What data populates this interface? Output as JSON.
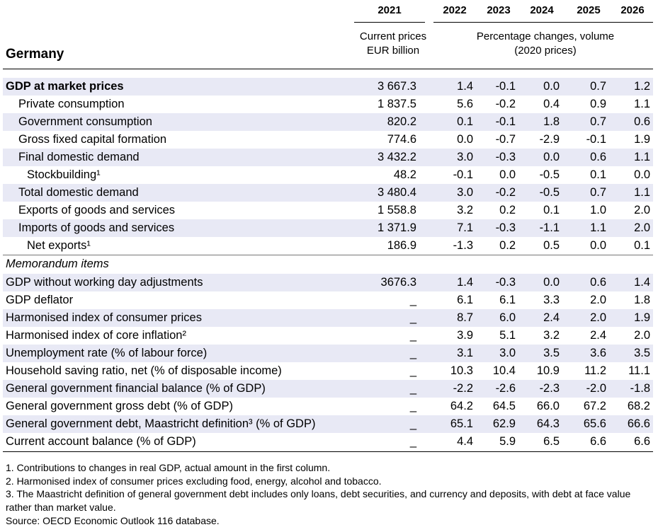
{
  "title": "Germany",
  "years": [
    "2021",
    "2022",
    "2023",
    "2024",
    "2025",
    "2026"
  ],
  "subheaders": {
    "col_2021_line1": "Current prices",
    "col_2021_line2": "EUR billion",
    "pct_line1": "Percentage changes, volume",
    "pct_line2": "(2020 prices)"
  },
  "rows": [
    {
      "label": "GDP at market prices",
      "values": [
        "3 667.3",
        "1.4",
        "-0.1",
        "0.0",
        "0.7",
        "1.2"
      ]
    },
    {
      "label": "Private consumption",
      "values": [
        "1 837.5",
        "5.6",
        "-0.2",
        "0.4",
        "0.9",
        "1.1"
      ]
    },
    {
      "label": "Government consumption",
      "values": [
        "820.2",
        "0.1",
        "-0.1",
        "1.8",
        "0.7",
        "0.6"
      ]
    },
    {
      "label": "Gross fixed capital formation",
      "values": [
        "774.6",
        "0.0",
        "-0.7",
        "-2.9",
        "-0.1",
        "1.9"
      ]
    },
    {
      "label": "Final domestic demand",
      "values": [
        "3 432.2",
        "3.0",
        "-0.3",
        "0.0",
        "0.6",
        "1.1"
      ]
    },
    {
      "label": "Stockbuilding¹",
      "values": [
        "48.2",
        "-0.1",
        "0.0",
        "-0.5",
        "0.1",
        "0.0"
      ]
    },
    {
      "label": "Total domestic demand",
      "values": [
        "3 480.4",
        "3.0",
        "-0.2",
        "-0.5",
        "0.7",
        "1.1"
      ]
    },
    {
      "label": "Exports of goods and services",
      "values": [
        "1 558.8",
        "3.2",
        "0.2",
        "0.1",
        "1.0",
        "2.0"
      ]
    },
    {
      "label": "Imports of goods and services",
      "values": [
        "1 371.9",
        "7.1",
        "-0.3",
        "-1.1",
        "1.1",
        "2.0"
      ]
    },
    {
      "label": "Net exports¹",
      "values": [
        "186.9",
        "-1.3",
        "0.2",
        "0.5",
        "0.0",
        "0.1"
      ]
    }
  ],
  "memo_label": "Memorandum items",
  "memo_rows": [
    {
      "label": "GDP without working day adjustments",
      "values": [
        "3676.3",
        "1.4",
        "-0.3",
        "0.0",
        "0.6",
        "1.4"
      ]
    },
    {
      "label": "GDP deflator",
      "values": [
        "_",
        "6.1",
        "6.1",
        "3.3",
        "2.0",
        "1.8"
      ]
    },
    {
      "label": "Harmonised index of consumer prices",
      "values": [
        "_",
        "8.7",
        "6.0",
        "2.4",
        "2.0",
        "1.9"
      ]
    },
    {
      "label": "Harmonised index of core inflation²",
      "values": [
        "_",
        "3.9",
        "5.1",
        "3.2",
        "2.4",
        "2.0"
      ]
    },
    {
      "label": "Unemployment rate (% of labour force)",
      "values": [
        "_",
        "3.1",
        "3.0",
        "3.5",
        "3.6",
        "3.5"
      ]
    },
    {
      "label": "Household saving ratio, net (% of disposable income)",
      "values": [
        "_",
        "10.3",
        "10.4",
        "10.9",
        "11.2",
        "11.1"
      ]
    },
    {
      "label": "General government financial balance (% of GDP)",
      "values": [
        "_",
        "-2.2",
        "-2.6",
        "-2.3",
        "-2.0",
        "-1.8"
      ]
    },
    {
      "label": "General government gross debt (% of GDP)",
      "values": [
        "_",
        "64.2",
        "64.5",
        "66.0",
        "67.2",
        "68.2"
      ]
    },
    {
      "label": "General government debt, Maastricht definition³ (% of GDP)",
      "values": [
        "_",
        "65.1",
        "62.9",
        "64.3",
        "65.6",
        "66.6"
      ]
    },
    {
      "label": "Current account balance (% of GDP)",
      "values": [
        "_",
        "4.4",
        "5.9",
        "6.5",
        "6.6",
        "6.6"
      ]
    }
  ],
  "notes": [
    "1. Contributions to changes in real GDP, actual amount in the first column.",
    "2. Harmonised index of consumer prices excluding food, energy, alcohol and tobacco.",
    "3. The Maastricht definition of general government debt includes only loans, debt securities, and currency and deposits, with debt at face value rather than market value.",
    "Source: OECD Economic Outlook 116 database."
  ]
}
